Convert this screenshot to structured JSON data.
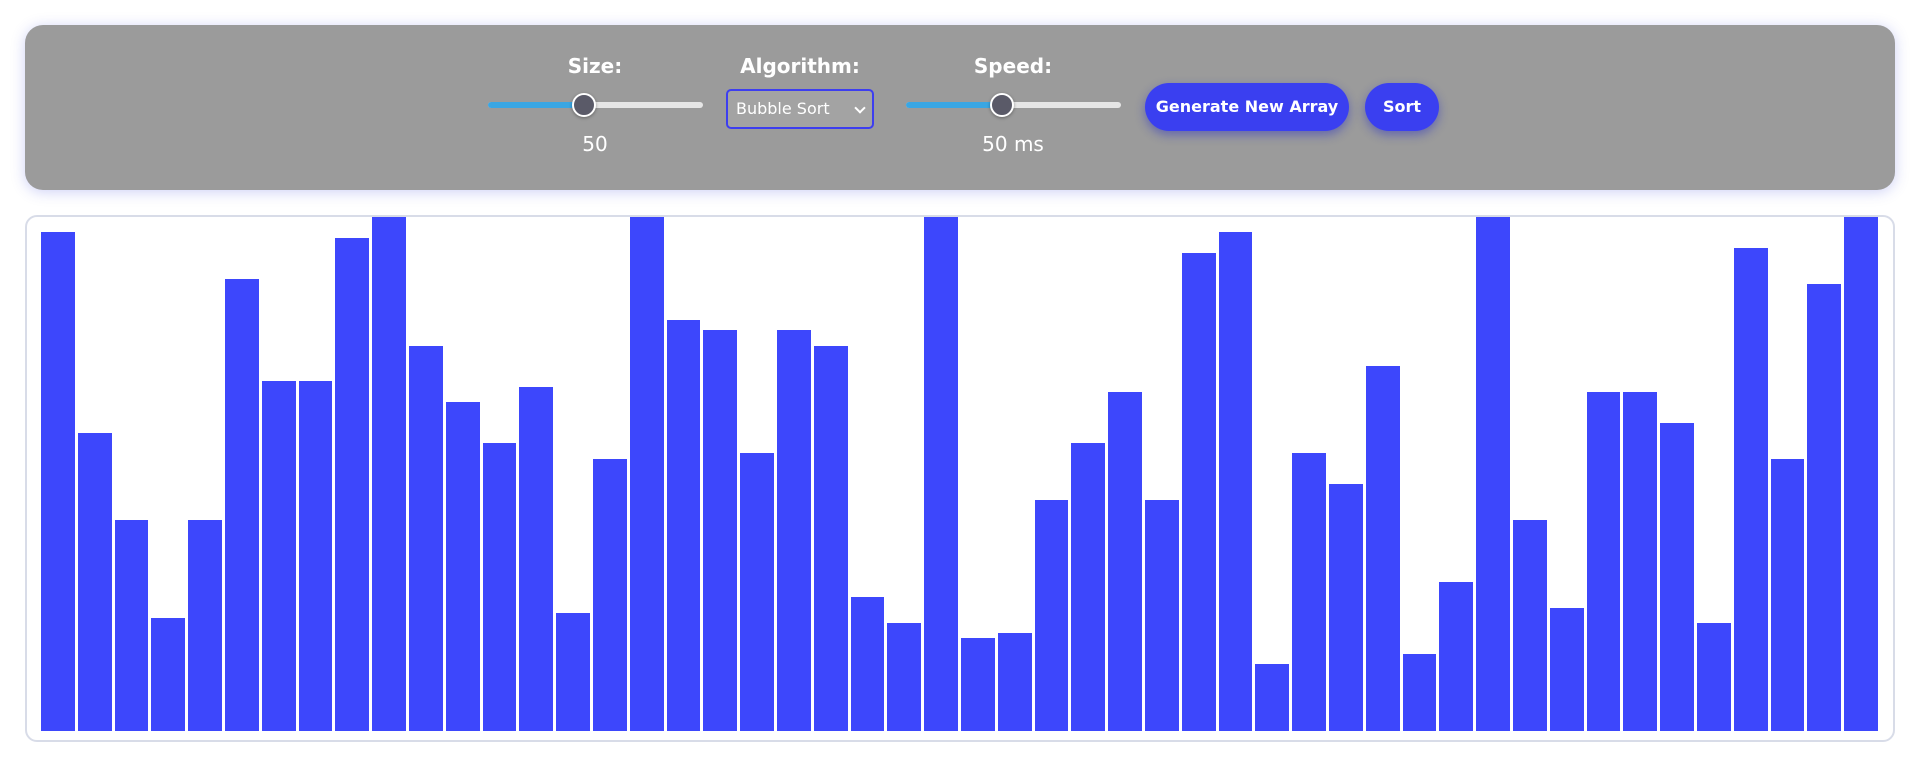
{
  "controls": {
    "size_label": "Size:",
    "size_value": "50",
    "size_slider_fraction": 0.45,
    "algorithm_label": "Algorithm:",
    "algorithm_selected": "Bubble Sort",
    "speed_label": "Speed:",
    "speed_value": "50 ms",
    "speed_slider_fraction": 0.45,
    "generate_button": "Generate New Array",
    "sort_button": "Sort"
  },
  "colors": {
    "panel": "#9b9b9b",
    "bar": "#3d47fc",
    "button": "#3a3ff0",
    "slider_fill": "#3aa6e3"
  },
  "icons": {
    "select_arrow": "chevron-down-icon"
  },
  "array": {
    "max_value": 100,
    "values": [
      97,
      58,
      41,
      22,
      41,
      88,
      68,
      68,
      96,
      100,
      75,
      64,
      56,
      67,
      23,
      53,
      100,
      80,
      78,
      54,
      78,
      75,
      26,
      21,
      100,
      18,
      19,
      45,
      56,
      66,
      45,
      93,
      97,
      13,
      54,
      48,
      71,
      15,
      29,
      100,
      41,
      24,
      66,
      66,
      60,
      21,
      94,
      53,
      87,
      100
    ]
  }
}
